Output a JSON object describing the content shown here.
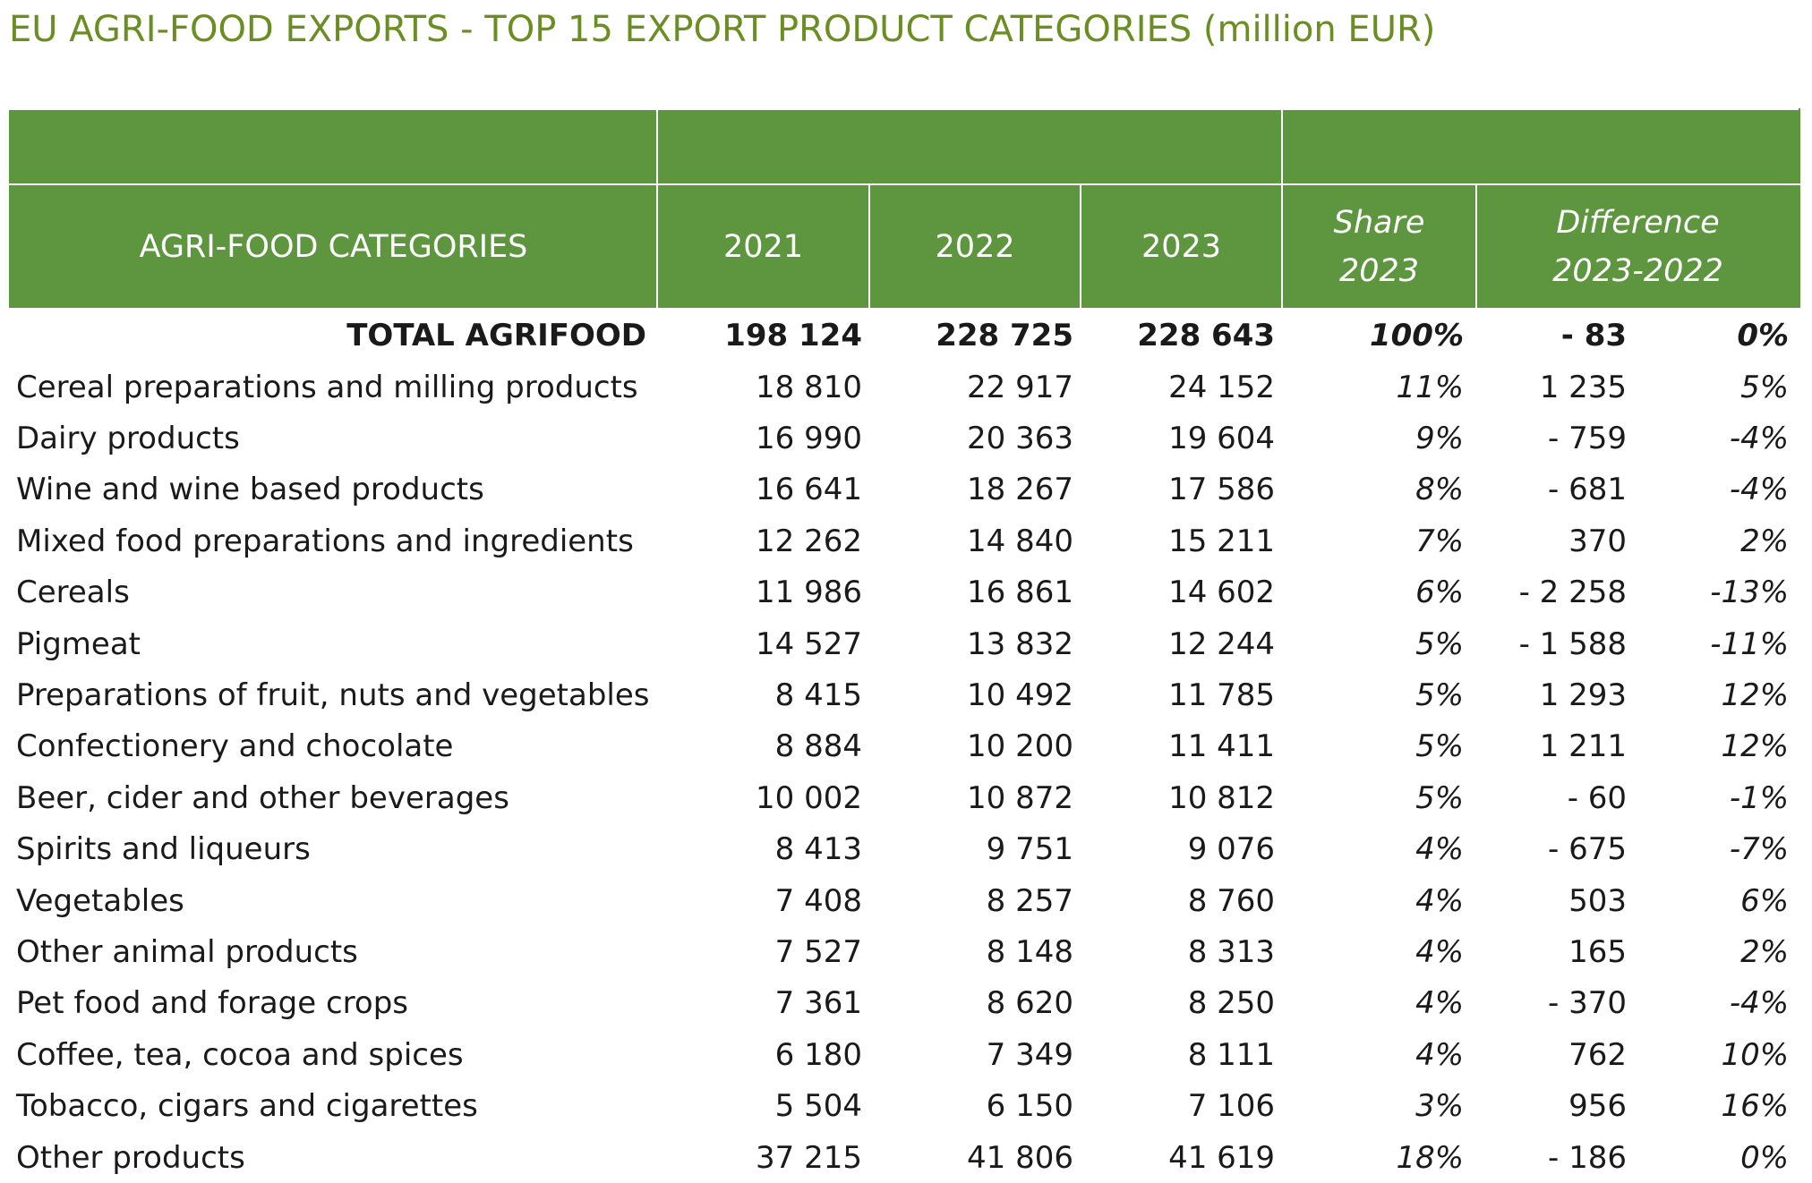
{
  "page": {
    "title": "EU AGRI-FOOD EXPORTS - TOP 15 EXPORT PRODUCT CATEGORIES (million EUR)"
  },
  "table": {
    "headers": {
      "category": "AGRI-FOOD CATEGORIES",
      "year_2021": "2021",
      "year_2022": "2022",
      "year_2023": "2023",
      "share_line1": "Share",
      "share_line2": "2023",
      "difference_line1": "Difference",
      "difference_line2": "2023-2022"
    },
    "total": {
      "category": "TOTAL AGRIFOOD",
      "y2021": "198 124",
      "y2022": "228 725",
      "y2023": "228 643",
      "share": "100%",
      "diff_abs": "-  83",
      "diff_pct": "0%"
    },
    "rows": [
      {
        "category": "Cereal preparations and milling products",
        "y2021": "18 810",
        "y2022": "22 917",
        "y2023": "24 152",
        "share": "11%",
        "diff_abs": "1 235",
        "diff_pct": "5%"
      },
      {
        "category": "Dairy products",
        "y2021": "16 990",
        "y2022": "20 363",
        "y2023": "19 604",
        "share": "9%",
        "diff_abs": "-   759",
        "diff_pct": "-4%"
      },
      {
        "category": "Wine and wine based products",
        "y2021": "16 641",
        "y2022": "18 267",
        "y2023": "17 586",
        "share": "8%",
        "diff_abs": "-   681",
        "diff_pct": "-4%"
      },
      {
        "category": "Mixed food preparations and ingredients",
        "y2021": "12 262",
        "y2022": "14 840",
        "y2023": "15 211",
        "share": "7%",
        "diff_abs": "370",
        "diff_pct": "2%"
      },
      {
        "category": "Cereals",
        "y2021": "11 986",
        "y2022": "16 861",
        "y2023": "14 602",
        "share": "6%",
        "diff_abs": "- 2 258",
        "diff_pct": "-13%"
      },
      {
        "category": "Pigmeat",
        "y2021": "14 527",
        "y2022": "13 832",
        "y2023": "12 244",
        "share": "5%",
        "diff_abs": "- 1 588",
        "diff_pct": "-11%"
      },
      {
        "category": "Preparations of fruit, nuts and vegetables",
        "y2021": "8 415",
        "y2022": "10 492",
        "y2023": "11 785",
        "share": "5%",
        "diff_abs": "1 293",
        "diff_pct": "12%"
      },
      {
        "category": "Confectionery and chocolate",
        "y2021": "8 884",
        "y2022": "10 200",
        "y2023": "11 411",
        "share": "5%",
        "diff_abs": "1 211",
        "diff_pct": "12%"
      },
      {
        "category": "Beer, cider and other beverages",
        "y2021": "10 002",
        "y2022": "10 872",
        "y2023": "10 812",
        "share": "5%",
        "diff_abs": "-   60",
        "diff_pct": "-1%"
      },
      {
        "category": "Spirits and liqueurs",
        "y2021": "8 413",
        "y2022": "9 751",
        "y2023": "9 076",
        "share": "4%",
        "diff_abs": "-   675",
        "diff_pct": "-7%"
      },
      {
        "category": "Vegetables",
        "y2021": "7 408",
        "y2022": "8 257",
        "y2023": "8 760",
        "share": "4%",
        "diff_abs": "503",
        "diff_pct": "6%"
      },
      {
        "category": "Other animal products",
        "y2021": "7 527",
        "y2022": "8 148",
        "y2023": "8 313",
        "share": "4%",
        "diff_abs": "165",
        "diff_pct": "2%"
      },
      {
        "category": "Pet food and forage crops",
        "y2021": "7 361",
        "y2022": "8 620",
        "y2023": "8 250",
        "share": "4%",
        "diff_abs": "-   370",
        "diff_pct": "-4%"
      },
      {
        "category": "Coffee, tea, cocoa and spices",
        "y2021": "6 180",
        "y2022": "7 349",
        "y2023": "8 111",
        "share": "4%",
        "diff_abs": "762",
        "diff_pct": "10%"
      },
      {
        "category": "Tobacco, cigars and cigarettes",
        "y2021": "5 504",
        "y2022": "6 150",
        "y2023": "7 106",
        "share": "3%",
        "diff_abs": "956",
        "diff_pct": "16%"
      },
      {
        "category": "Other products",
        "y2021": "37 215",
        "y2022": "41 806",
        "y2023": "41 619",
        "share": "18%",
        "diff_abs": "-   186",
        "diff_pct": "0%"
      }
    ]
  },
  "colors": {
    "header_green": "#5e9640",
    "title_olive": "#6b8e23"
  }
}
